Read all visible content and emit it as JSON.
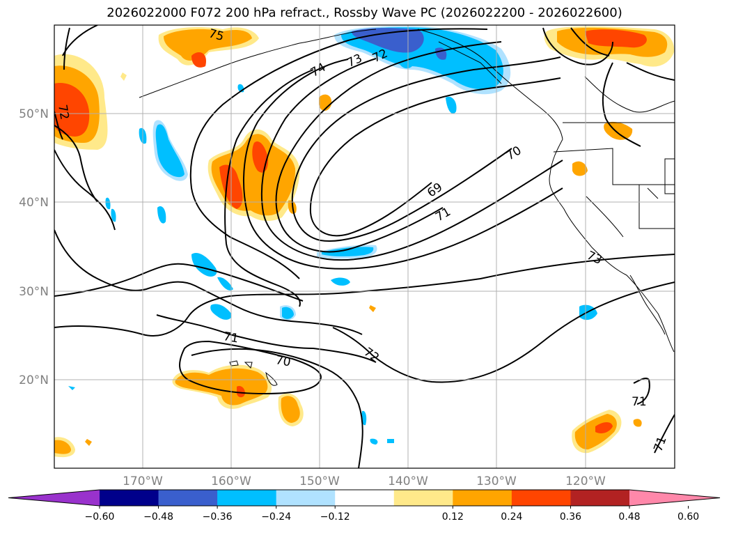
{
  "title": "2026022000 F072 200 hPa refract., Rossby Wave PC (2026022200 - 2026022600)",
  "lat_labels": [
    "50°N",
    "40°N",
    "30°N",
    "20°N"
  ],
  "lon_labels": [
    "170°W",
    "160°W",
    "150°W",
    "140°W",
    "130°W",
    "120°W"
  ],
  "contour_labels": [
    "74",
    "73",
    "72",
    "70",
    "69",
    "71",
    "73",
    "72",
    "71",
    "70",
    "72",
    "71",
    "71",
    "75"
  ],
  "colorbar": {
    "ticks": [
      "−0.60",
      "−0.48",
      "−0.36",
      "−0.24",
      "−0.12",
      "0.12",
      "0.24",
      "0.36",
      "0.48",
      "0.60"
    ],
    "colors": [
      "#9932cc",
      "#00008b",
      "#3a5fcd",
      "#00bfff",
      "#b0e2ff",
      "#ffffff",
      "#ffe98a",
      "#ffa500",
      "#ff4500",
      "#b22222",
      "#ff88aa"
    ]
  },
  "colors": {
    "orange_light": "#ffe98a",
    "orange": "#ffa500",
    "red": "#ff4500",
    "blue_light": "#b0e2ff",
    "blue": "#00bfff",
    "blue_dark": "#3a5fcd"
  }
}
